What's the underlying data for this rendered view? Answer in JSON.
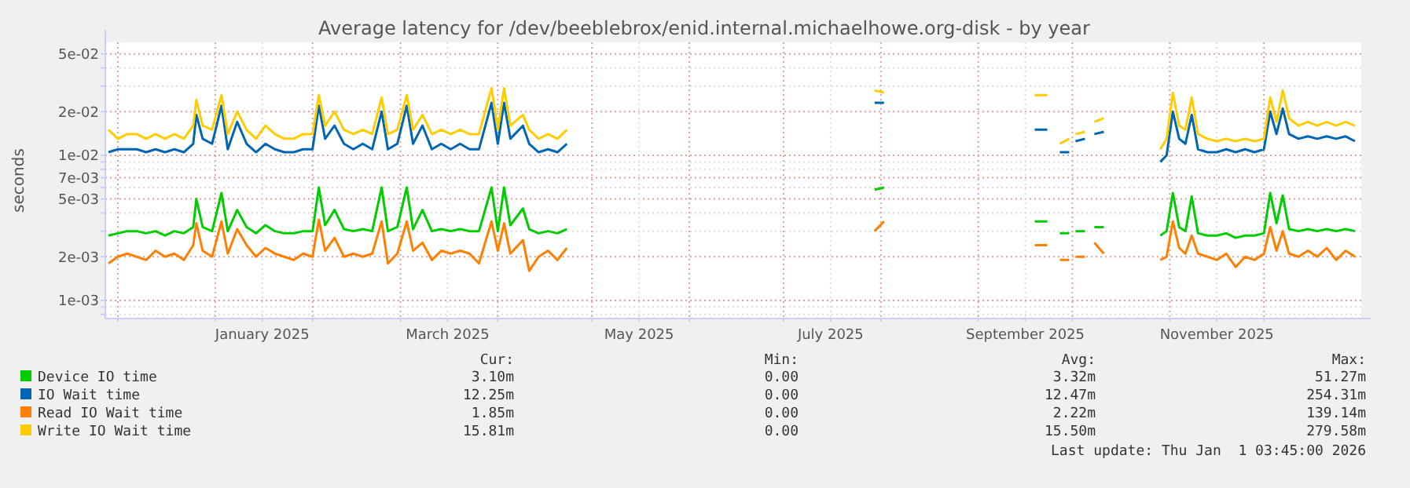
{
  "chart_data": {
    "type": "line",
    "title": "Average latency for /dev/beeblebrox/enid.internal.michaelhowe.org-disk - by year",
    "ylabel": "seconds",
    "log": "y",
    "grid": true,
    "legend": "bottom",
    "line_style": "solid",
    "marker": "none",
    "xlim": [
      "2024-11-27",
      "2026-01-01"
    ],
    "xticks": [
      {
        "value": "2024-12-01",
        "label": null
      },
      {
        "value": "2025-01-01",
        "label": null
      },
      {
        "value": "2025-01-16",
        "label": "January 2025"
      },
      {
        "value": "2025-02-01",
        "label": null
      },
      {
        "value": "2025-03-01",
        "label": null
      },
      {
        "value": "2025-03-16",
        "label": "March 2025"
      },
      {
        "value": "2025-04-01",
        "label": null
      },
      {
        "value": "2025-05-01",
        "label": null
      },
      {
        "value": "2025-05-16",
        "label": "May 2025"
      },
      {
        "value": "2025-06-01",
        "label": null
      },
      {
        "value": "2025-07-01",
        "label": null
      },
      {
        "value": "2025-07-16",
        "label": "July 2025"
      },
      {
        "value": "2025-08-01",
        "label": null
      },
      {
        "value": "2025-09-01",
        "label": null
      },
      {
        "value": "2025-09-16",
        "label": "September 2025"
      },
      {
        "value": "2025-10-01",
        "label": null
      },
      {
        "value": "2025-11-01",
        "label": null
      },
      {
        "value": "2025-11-16",
        "label": "November 2025"
      },
      {
        "value": "2025-12-01",
        "label": null
      }
    ],
    "ylim": [
      0.00075,
      0.06
    ],
    "yticks": [
      {
        "value": 0.0008,
        "label": null
      },
      {
        "value": 0.0009,
        "label": null
      },
      {
        "value": 0.001,
        "label": "1e-03"
      },
      {
        "value": 0.002,
        "label": "2e-03"
      },
      {
        "value": 0.003,
        "label": null
      },
      {
        "value": 0.004,
        "label": null
      },
      {
        "value": 0.005,
        "label": "5e-03"
      },
      {
        "value": 0.006,
        "label": null
      },
      {
        "value": 0.007,
        "label": "7e-03"
      },
      {
        "value": 0.008,
        "label": null
      },
      {
        "value": 0.009,
        "label": null
      },
      {
        "value": 0.01,
        "label": "1e-02"
      },
      {
        "value": 0.02,
        "label": "2e-02"
      },
      {
        "value": 0.03,
        "label": null
      },
      {
        "value": 0.04,
        "label": null
      },
      {
        "value": 0.05,
        "label": "5e-02"
      }
    ],
    "x": [
      "2024-11-28",
      "2024-12-01",
      "2024-12-04",
      "2024-12-07",
      "2024-12-10",
      "2024-12-13",
      "2024-12-16",
      "2024-12-19",
      "2024-12-22",
      "2024-12-25",
      "2024-12-26",
      "2024-12-28",
      "2024-12-31",
      "2025-01-03",
      "2025-01-05",
      "2025-01-08",
      "2025-01-11",
      "2025-01-14",
      "2025-01-17",
      "2025-01-20",
      "2025-01-23",
      "2025-01-26",
      "2025-01-29",
      "2025-02-01",
      "2025-02-03",
      "2025-02-05",
      "2025-02-08",
      "2025-02-11",
      "2025-02-14",
      "2025-02-17",
      "2025-02-20",
      "2025-02-23",
      "2025-02-25",
      "2025-02-28",
      "2025-03-03",
      "2025-03-05",
      "2025-03-08",
      "2025-03-11",
      "2025-03-14",
      "2025-03-17",
      "2025-03-20",
      "2025-03-23",
      "2025-03-26",
      "2025-03-30",
      "2025-04-01",
      "2025-04-03",
      "2025-04-05",
      "2025-04-09",
      "2025-04-11",
      "2025-04-14",
      "2025-04-17",
      "2025-04-20",
      "2025-04-23",
      "2025-06-01",
      "2025-07-30",
      "2025-08-02",
      "2025-08-20",
      "2025-09-19",
      "2025-09-23",
      "2025-09-26",
      "2025-09-27",
      "2025-09-30",
      "2025-10-01",
      "2025-10-02",
      "2025-10-05",
      "2025-10-06",
      "2025-10-08",
      "2025-10-11",
      "2025-10-20",
      "2025-10-29",
      "2025-10-31",
      "2025-11-02",
      "2025-11-04",
      "2025-11-06",
      "2025-11-08",
      "2025-11-10",
      "2025-11-13",
      "2025-11-16",
      "2025-11-19",
      "2025-11-22",
      "2025-11-25",
      "2025-11-28",
      "2025-12-01",
      "2025-12-03",
      "2025-12-05",
      "2025-12-07",
      "2025-12-09",
      "2025-12-12",
      "2025-12-15",
      "2025-12-18",
      "2025-12-21",
      "2025-12-24",
      "2025-12-27",
      "2025-12-30"
    ],
    "series": [
      {
        "name": "Device IO time",
        "color": "#00cc00",
        "values": [
          0.0028,
          0.0029,
          0.003,
          0.003,
          0.0029,
          0.003,
          0.0028,
          0.003,
          0.0029,
          0.0032,
          0.005,
          0.0032,
          0.003,
          0.0055,
          0.003,
          0.0042,
          0.0032,
          0.0029,
          0.0033,
          0.003,
          0.0029,
          0.0029,
          0.003,
          0.003,
          0.006,
          0.0033,
          0.0042,
          0.0031,
          0.003,
          0.0031,
          0.003,
          0.006,
          0.003,
          0.0032,
          0.006,
          0.0031,
          0.0042,
          0.003,
          0.0031,
          0.003,
          0.0031,
          0.003,
          0.003,
          0.006,
          0.003,
          0.006,
          0.0033,
          0.0043,
          0.0031,
          0.0029,
          0.003,
          0.0029,
          0.0031,
          null,
          0.0058,
          0.006,
          null,
          0.0035,
          0.0035,
          null,
          0.0029,
          0.0029,
          null,
          0.003,
          0.003,
          null,
          0.0032,
          0.0032,
          null,
          0.0028,
          0.003,
          0.0055,
          0.0032,
          0.003,
          0.0052,
          0.0029,
          0.0028,
          0.0028,
          0.0029,
          0.0027,
          0.0028,
          0.0028,
          0.0029,
          0.0055,
          0.0034,
          0.0053,
          0.0031,
          0.003,
          0.0031,
          0.003,
          0.0031,
          0.003,
          0.0031,
          0.003
        ]
      },
      {
        "name": "IO Wait time",
        "color": "#0066b3",
        "values": [
          0.0105,
          0.011,
          0.011,
          0.011,
          0.0105,
          0.011,
          0.0105,
          0.011,
          0.0105,
          0.012,
          0.019,
          0.013,
          0.012,
          0.022,
          0.011,
          0.017,
          0.012,
          0.0105,
          0.012,
          0.011,
          0.0105,
          0.0105,
          0.011,
          0.011,
          0.022,
          0.013,
          0.016,
          0.012,
          0.011,
          0.012,
          0.011,
          0.02,
          0.011,
          0.012,
          0.022,
          0.012,
          0.016,
          0.011,
          0.012,
          0.011,
          0.012,
          0.011,
          0.011,
          0.023,
          0.012,
          0.023,
          0.013,
          0.016,
          0.012,
          0.0105,
          0.011,
          0.0105,
          0.012,
          null,
          0.023,
          0.023,
          null,
          0.015,
          0.015,
          null,
          0.0105,
          0.0105,
          null,
          0.0125,
          0.013,
          null,
          0.014,
          0.0145,
          null,
          0.009,
          0.01,
          0.02,
          0.013,
          0.012,
          0.019,
          0.011,
          0.0105,
          0.0105,
          0.011,
          0.0105,
          0.011,
          0.0105,
          0.011,
          0.02,
          0.014,
          0.021,
          0.014,
          0.013,
          0.0135,
          0.013,
          0.0135,
          0.013,
          0.0135,
          0.0125
        ]
      },
      {
        "name": "Read IO Wait time",
        "color": "#ff8000",
        "values": [
          0.0018,
          0.002,
          0.0021,
          0.002,
          0.0019,
          0.0022,
          0.002,
          0.0021,
          0.0019,
          0.0024,
          0.0034,
          0.0022,
          0.002,
          0.0035,
          0.0021,
          0.0031,
          0.0024,
          0.002,
          0.0023,
          0.0021,
          0.002,
          0.0019,
          0.0021,
          0.002,
          0.0036,
          0.0022,
          0.0027,
          0.002,
          0.0021,
          0.002,
          0.0021,
          0.0035,
          0.0018,
          0.0021,
          0.0035,
          0.0022,
          0.0025,
          0.0019,
          0.0022,
          0.0021,
          0.0022,
          0.0021,
          0.0018,
          0.0035,
          0.0022,
          0.0034,
          0.0021,
          0.0026,
          0.0016,
          0.002,
          0.0022,
          0.0019,
          0.0023,
          null,
          0.003,
          0.0035,
          null,
          0.0024,
          0.0024,
          null,
          0.0019,
          0.0019,
          null,
          0.002,
          0.002,
          null,
          0.0025,
          0.0021,
          null,
          0.0019,
          0.002,
          0.0035,
          0.0023,
          0.0021,
          0.0028,
          0.0021,
          0.002,
          0.0019,
          0.0021,
          0.0017,
          0.002,
          0.0019,
          0.0021,
          0.0032,
          0.0022,
          0.003,
          0.0021,
          0.002,
          0.0022,
          0.002,
          0.0023,
          0.0019,
          0.0022,
          0.002
        ]
      },
      {
        "name": "Write IO Wait time",
        "color": "#ffcc00",
        "values": [
          0.015,
          0.013,
          0.014,
          0.014,
          0.013,
          0.014,
          0.013,
          0.014,
          0.013,
          0.016,
          0.024,
          0.016,
          0.015,
          0.026,
          0.014,
          0.02,
          0.015,
          0.013,
          0.016,
          0.014,
          0.013,
          0.013,
          0.014,
          0.014,
          0.026,
          0.016,
          0.02,
          0.015,
          0.014,
          0.015,
          0.014,
          0.025,
          0.014,
          0.015,
          0.026,
          0.015,
          0.019,
          0.014,
          0.015,
          0.014,
          0.015,
          0.014,
          0.014,
          0.029,
          0.015,
          0.029,
          0.016,
          0.019,
          0.015,
          0.013,
          0.014,
          0.013,
          0.015,
          null,
          0.028,
          0.027,
          null,
          0.026,
          0.026,
          null,
          0.012,
          0.013,
          null,
          0.014,
          0.0145,
          null,
          0.017,
          0.018,
          null,
          0.011,
          0.013,
          0.027,
          0.016,
          0.015,
          0.025,
          0.014,
          0.013,
          0.0125,
          0.013,
          0.0125,
          0.013,
          0.0125,
          0.013,
          0.025,
          0.017,
          0.028,
          0.018,
          0.016,
          0.017,
          0.016,
          0.017,
          0.016,
          0.017,
          0.016
        ]
      }
    ],
    "annotations": [
      "Cur:",
      "Min:",
      "Avg:",
      "Max:",
      "3.10m",
      "0.00",
      "3.32m",
      "51.27m",
      "12.25m",
      "0.00",
      "12.47m",
      "254.31m",
      "1.85m",
      "0.00",
      "2.22m",
      "139.14m",
      "15.81m",
      "0.00",
      "15.50m",
      "279.58m",
      "Last update: Thu Jan  1 03:45:00 2026"
    ]
  }
}
